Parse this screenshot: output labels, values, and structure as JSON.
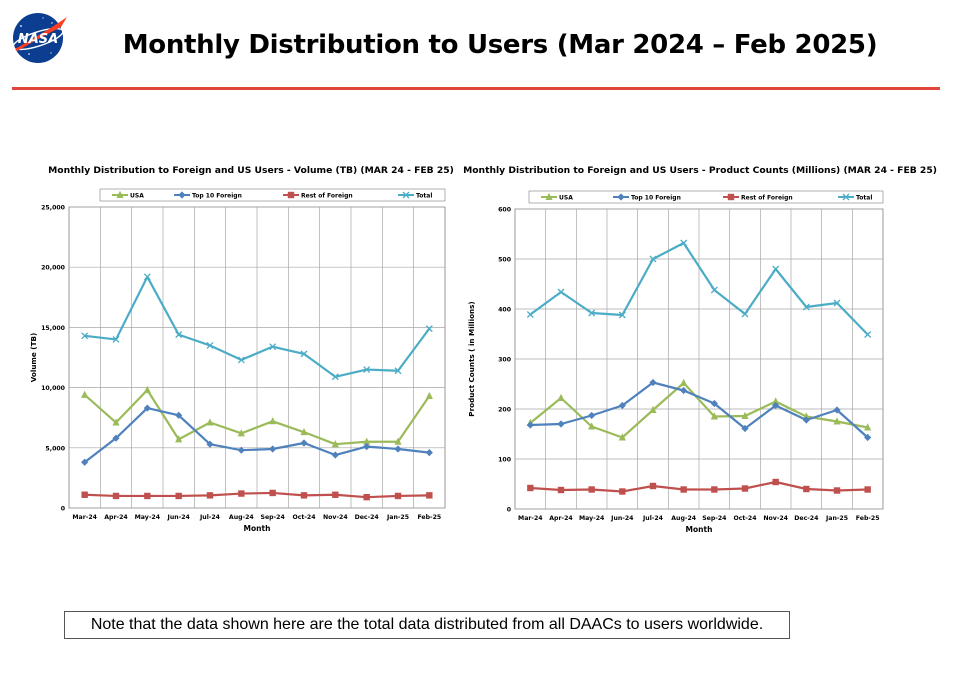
{
  "page": {
    "title": "Monthly Distribution to Users (Mar 2024 – Feb 2025)",
    "note": "Note that the data shown here are the total data distributed from all DAACs to users worldwide.",
    "logo_text": "NASA"
  },
  "colors": {
    "rule": "#e0473a",
    "usa": "#9bbb59",
    "top10": "#4f81bd",
    "rest": "#c0504d",
    "total": "#4bacc6",
    "grid": "#a6a6a6"
  },
  "chart_data": [
    {
      "type": "line",
      "title": "Monthly Distribution to Foreign and US Users - Volume  (TB) (MAR 24 - FEB 25)",
      "xlabel": "Month",
      "ylabel": "Volume (TB)",
      "ylim": [
        0,
        25000
      ],
      "yticks": [
        0,
        5000,
        10000,
        15000,
        20000,
        25000
      ],
      "ytick_labels": [
        "0",
        "5,000",
        "10,000",
        "15,000",
        "20,000",
        "25,000"
      ],
      "categories": [
        "Mar-24",
        "Apr-24",
        "May-24",
        "Jun-24",
        "Jul-24",
        "Aug-24",
        "Sep-24",
        "Oct-24",
        "Nov-24",
        "Dec-24",
        "Jan-25",
        "Feb-25"
      ],
      "legend_position": "top",
      "grid": true,
      "series": [
        {
          "name": "USA",
          "marker": "triangle",
          "color": "#9bbb59",
          "values": [
            9400,
            7100,
            9800,
            5700,
            7100,
            6200,
            7200,
            6300,
            5300,
            5500,
            5500,
            9300
          ]
        },
        {
          "name": "Top 10 Foreign",
          "marker": "diamond",
          "color": "#4f81bd",
          "values": [
            3800,
            5800,
            8300,
            7700,
            5300,
            4800,
            4900,
            5400,
            4400,
            5100,
            4900,
            4600
          ]
        },
        {
          "name": "Rest of Foreign",
          "marker": "square",
          "color": "#c0504d",
          "values": [
            1100,
            1000,
            1000,
            1000,
            1050,
            1200,
            1250,
            1050,
            1100,
            900,
            1000,
            1050
          ]
        },
        {
          "name": "Total",
          "marker": "x",
          "color": "#4bacc6",
          "values": [
            14300,
            14000,
            19200,
            14400,
            13500,
            12300,
            13400,
            12800,
            10900,
            11500,
            11400,
            14900
          ]
        }
      ]
    },
    {
      "type": "line",
      "title": "Monthly Distribution to Foreign and US Users - Product Counts (Millions) (MAR 24 - FEB 25)",
      "xlabel": "Month",
      "ylabel": "Product Counts ( in Millions)",
      "ylim": [
        0,
        600
      ],
      "yticks": [
        0,
        100,
        200,
        300,
        400,
        500,
        600
      ],
      "ytick_labels": [
        "0",
        "100",
        "200",
        "300",
        "400",
        "500",
        "600"
      ],
      "categories": [
        "Mar-24",
        "Apr-24",
        "May-24",
        "Jun-24",
        "Jul-24",
        "Aug-24",
        "Sep-24",
        "Oct-24",
        "Nov-24",
        "Dec-24",
        "Jan-25",
        "Feb-25"
      ],
      "legend_position": "top",
      "grid": true,
      "series": [
        {
          "name": "USA",
          "marker": "triangle",
          "color": "#9bbb59",
          "values": [
            172,
            222,
            165,
            143,
            198,
            252,
            185,
            186,
            215,
            185,
            175,
            163
          ]
        },
        {
          "name": "Top 10 Foreign",
          "marker": "diamond",
          "color": "#4f81bd",
          "values": [
            168,
            170,
            187,
            207,
            253,
            237,
            211,
            161,
            207,
            178,
            198,
            143
          ]
        },
        {
          "name": "Rest of Foreign",
          "marker": "square",
          "color": "#c0504d",
          "values": [
            42,
            38,
            39,
            35,
            46,
            39,
            39,
            41,
            54,
            40,
            37,
            39
          ]
        },
        {
          "name": "Total",
          "marker": "x",
          "color": "#4bacc6",
          "values": [
            389,
            434,
            392,
            388,
            500,
            532,
            438,
            390,
            480,
            404,
            412,
            349
          ]
        }
      ]
    }
  ]
}
